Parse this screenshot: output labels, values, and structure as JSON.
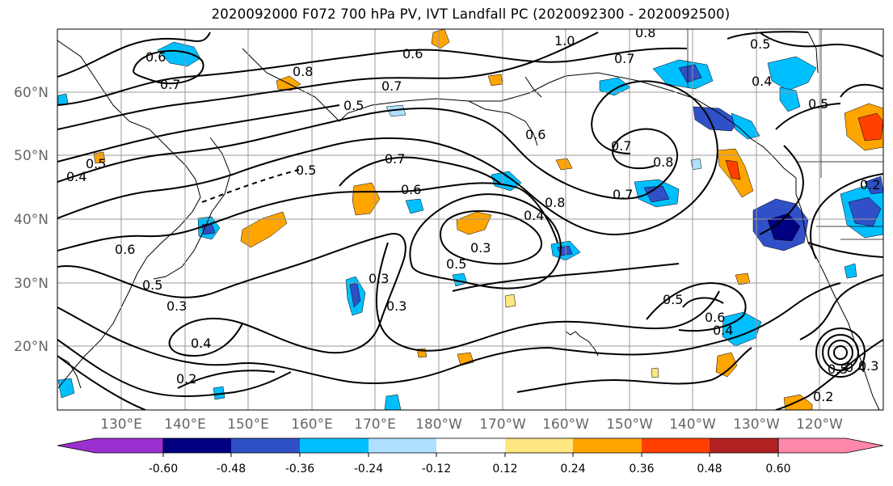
{
  "title": "2020092000 F072 700 hPa PV, IVT Landfall PC (2020092300 - 2020092500)",
  "lat_labels": [
    "60°N",
    "50°N",
    "40°N",
    "30°N",
    "20°N"
  ],
  "lon_labels": [
    "130°E",
    "140°E",
    "150°E",
    "160°E",
    "170°E",
    "180°W",
    "170°W",
    "160°W",
    "150°W",
    "140°W",
    "130°W",
    "120°W"
  ],
  "contour_labels": [
    "0.6",
    "0.7",
    "0.8",
    "0.6",
    "0.7",
    "1.0",
    "0.8",
    "0.7",
    "0.5",
    "0.4",
    "0.5",
    "0.5",
    "0.5",
    "0.6",
    "0.7",
    "0.4",
    "0.5",
    "0.7",
    "0.6",
    "0.8",
    "0.7",
    "0.8",
    "0.4",
    "0.3",
    "0.5",
    "0.6",
    "0.5",
    "0.3",
    "0.3",
    "0.4",
    "0.2",
    "0.3",
    "0.5",
    "0.6",
    "0.4",
    "0.5",
    "0.4",
    "0.3",
    "0.2",
    "0.2"
  ],
  "colorbar": {
    "colors": [
      "#9b30d0",
      "#000080",
      "#3050c8",
      "#00bfff",
      "#b0e0ff",
      "#ffffff",
      "#ffe680",
      "#ffa500",
      "#ff4000",
      "#b22222",
      "#ff88aa"
    ],
    "tick_labels": [
      "-0.60",
      "-0.48",
      "-0.36",
      "-0.24",
      "-0.12",
      "0.12",
      "0.24",
      "0.36",
      "0.48",
      "0.60"
    ]
  }
}
